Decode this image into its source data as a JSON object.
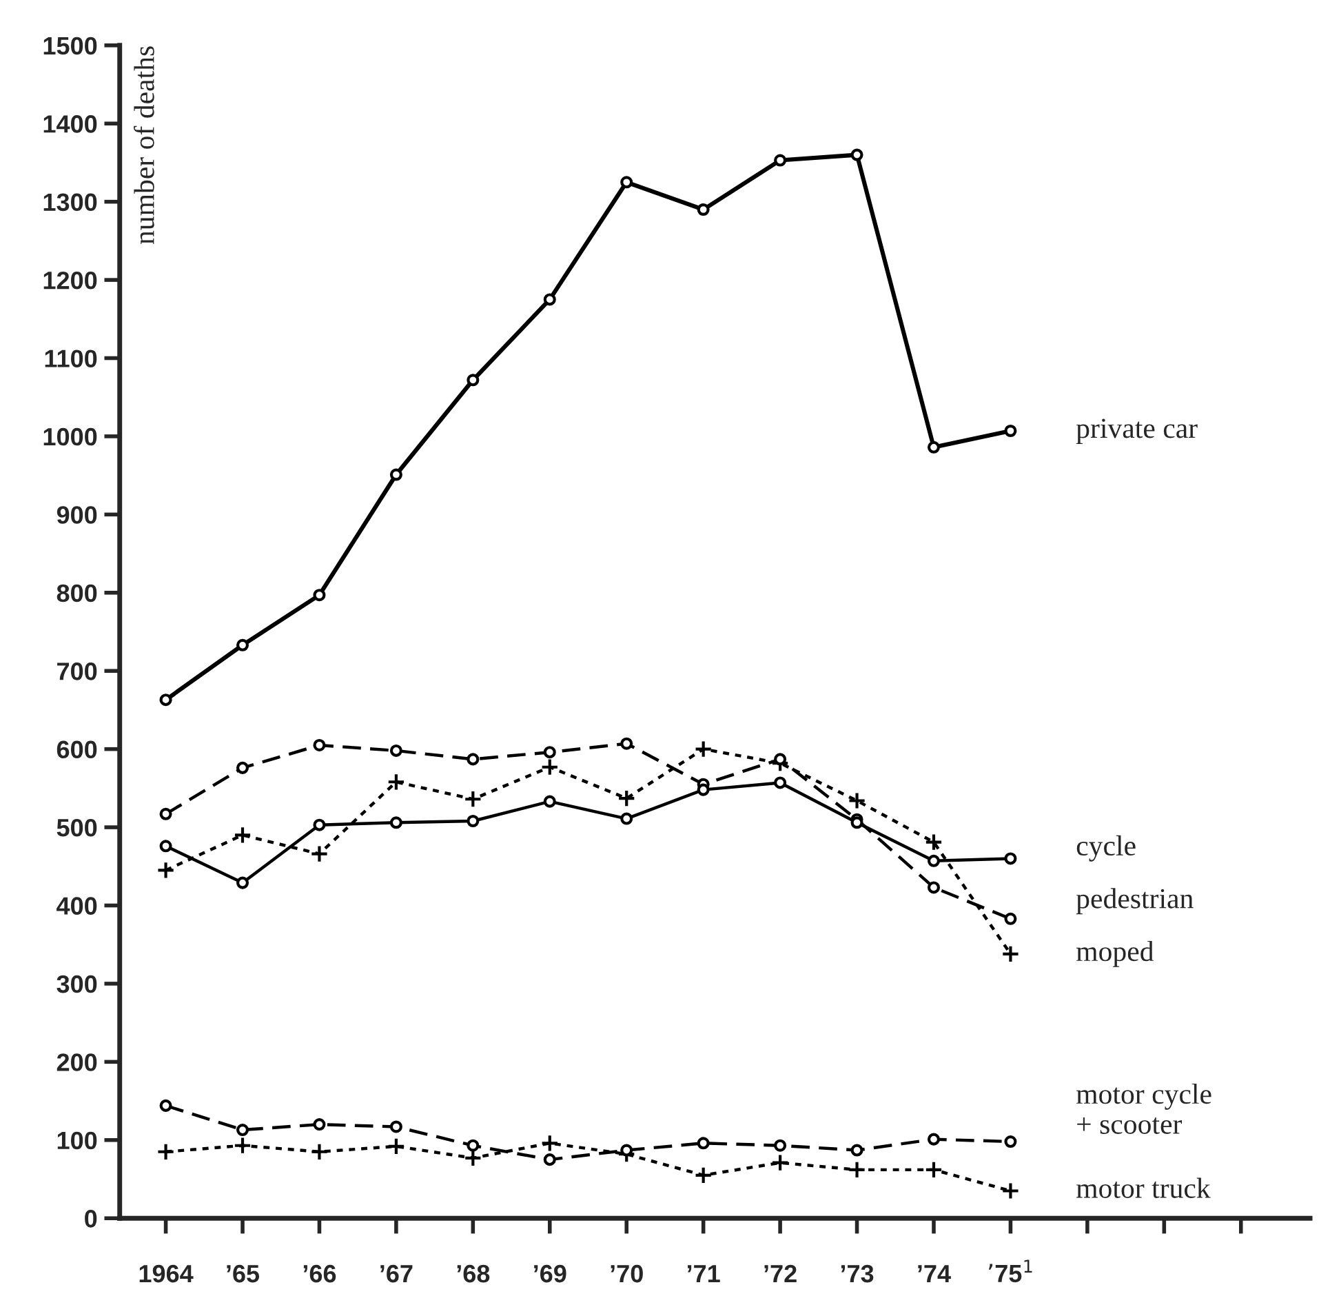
{
  "chart_data": {
    "type": "line",
    "ylabel": "number of deaths",
    "categories": [
      "1964",
      "’65",
      "’66",
      "’67",
      "’68",
      "’69",
      "’70",
      "’71",
      "’72",
      "’73",
      "’74",
      "’75$^{1}$",
      null,
      null,
      null
    ],
    "ylim": [
      0,
      1500
    ],
    "yticks": [
      0,
      100,
      200,
      300,
      400,
      500,
      600,
      700,
      800,
      900,
      1000,
      1100,
      1200,
      1300,
      1400,
      1500
    ],
    "grid": false,
    "legend": false,
    "series": [
      {
        "name": "private car",
        "color": "#000000",
        "marker": "circle",
        "line_style": "solid",
        "values": [
          663,
          733,
          797,
          951,
          1072,
          1175,
          1325,
          1290,
          1353,
          1360,
          986,
          1007,
          null,
          null,
          null
        ]
      },
      {
        "name": "cycle",
        "color": "#000000",
        "marker": "circle",
        "line_style": "solid",
        "values": [
          476,
          429,
          503,
          506,
          508,
          533,
          511,
          548,
          557,
          506,
          457,
          460,
          null,
          null,
          null
        ]
      },
      {
        "name": "pedestrian",
        "color": "#000000",
        "marker": "circle",
        "line_style": "dashed",
        "values": [
          517,
          576,
          605,
          598,
          587,
          596,
          607,
          555,
          587,
          510,
          423,
          383,
          null,
          null,
          null
        ]
      },
      {
        "name": "moped",
        "color": "#000000",
        "marker": "cross",
        "line_style": "dotted",
        "values": [
          445,
          490,
          466,
          558,
          536,
          577,
          537,
          600,
          582,
          534,
          481,
          338,
          null,
          null,
          null
        ]
      },
      {
        "name": "motor cycle\n+ scooter",
        "color": "#000000",
        "marker": "circle",
        "line_style": "dashed",
        "values": [
          144,
          113,
          120,
          117,
          93,
          75,
          87,
          96,
          93,
          87,
          101,
          98,
          null,
          null,
          null
        ]
      },
      {
        "name": "motor truck",
        "color": "#000000",
        "marker": "cross",
        "line_style": "dotted",
        "values": [
          85,
          93,
          85,
          92,
          77,
          96,
          82,
          55,
          71,
          62,
          62,
          35,
          null,
          null,
          null
        ]
      }
    ]
  }
}
